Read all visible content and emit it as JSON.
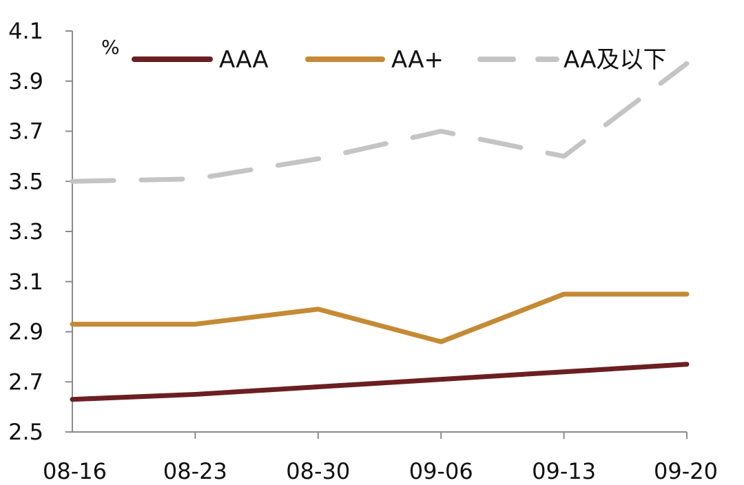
{
  "chart_data": {
    "type": "line",
    "unit": "%",
    "categories": [
      "08-16",
      "08-23",
      "08-30",
      "09-06",
      "09-13",
      "09-20"
    ],
    "ylim": [
      2.5,
      4.1
    ],
    "yticks": [
      "2.5",
      "2.7",
      "2.9",
      "3.1",
      "3.3",
      "3.5",
      "3.7",
      "3.9",
      "4.1"
    ],
    "grid": false,
    "legend_position": "top",
    "series": [
      {
        "name": "AAA",
        "color": "#6b1f22",
        "dash": "solid",
        "values": [
          2.63,
          2.65,
          2.68,
          2.71,
          2.74,
          2.77
        ]
      },
      {
        "name": "AA+",
        "color": "#c48a35",
        "dash": "solid",
        "values": [
          2.93,
          2.93,
          2.99,
          2.86,
          3.05,
          3.05
        ]
      },
      {
        "name": "AA及以下",
        "color": "#c4c4c4",
        "dash": "dashed",
        "values": [
          3.5,
          3.51,
          3.59,
          3.7,
          3.6,
          3.97
        ]
      }
    ]
  }
}
